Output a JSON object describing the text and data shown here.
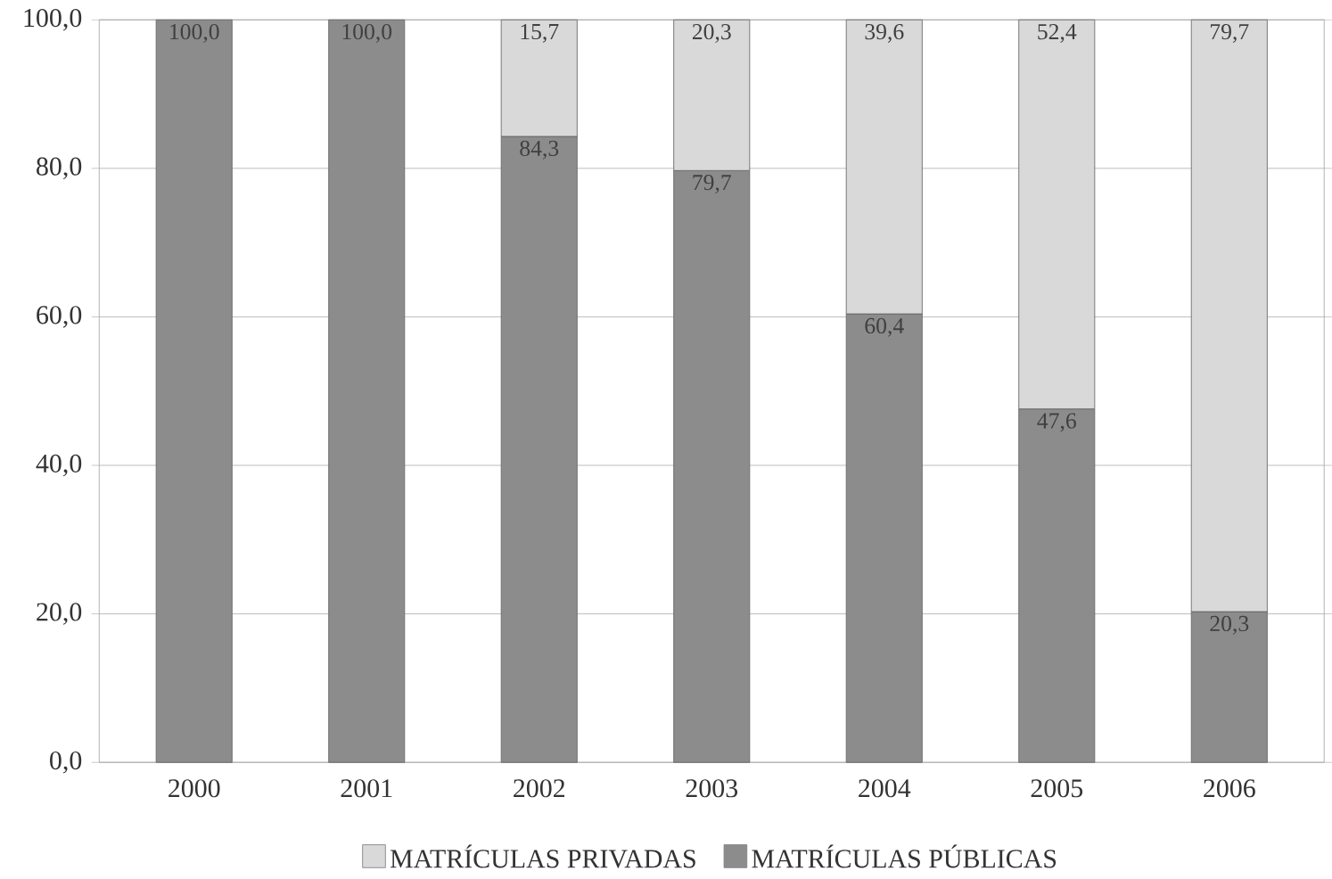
{
  "chart_data": {
    "type": "bar",
    "stacked": true,
    "categories": [
      "2000",
      "2001",
      "2002",
      "2003",
      "2004",
      "2005",
      "2006"
    ],
    "series": [
      {
        "name": "MATRÍCULAS PÚBLICAS",
        "color": "#8c8c8c",
        "values": [
          100.0,
          100.0,
          84.3,
          79.7,
          60.4,
          47.6,
          20.3
        ],
        "value_labels": [
          "100,0",
          "100,0",
          "84,3",
          "79,7",
          "60,4",
          "47,6",
          "20,3"
        ]
      },
      {
        "name": "MATRÍCULAS PRIVADAS",
        "color": "#d9d9d9",
        "values": [
          null,
          null,
          15.7,
          20.3,
          39.6,
          52.4,
          79.7
        ],
        "value_labels": [
          null,
          null,
          "15,7",
          "20,3",
          "39,6",
          "52,4",
          "79,7"
        ]
      }
    ],
    "ylim": [
      0,
      100
    ],
    "yticks": [
      {
        "value": 0,
        "label": "0,0"
      },
      {
        "value": 20,
        "label": "20,0"
      },
      {
        "value": 40,
        "label": "40,0"
      },
      {
        "value": 60,
        "label": "60,0"
      },
      {
        "value": 80,
        "label": "80,0"
      },
      {
        "value": 100,
        "label": "100,0"
      }
    ],
    "grid": "y",
    "legend": "bottom"
  }
}
